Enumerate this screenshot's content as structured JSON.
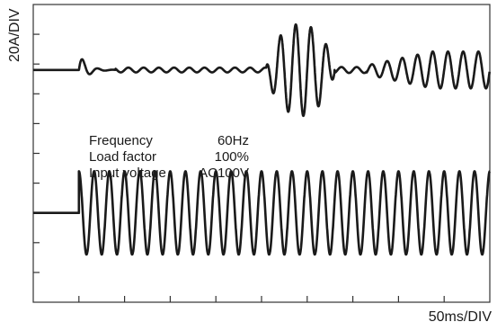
{
  "chart_data": {
    "type": "line",
    "ylabel": "20A/DIV",
    "xlabel": "50ms/DIV",
    "grid": false,
    "divisions": {
      "x": 10,
      "y": 10
    },
    "annotation": [
      {
        "key": "Frequency",
        "value": "60Hz"
      },
      {
        "key": "Load factor",
        "value": "100%"
      },
      {
        "key": "Input voltage",
        "value": "AC100V"
      }
    ],
    "series": [
      {
        "baseline_div": 2.2,
        "start_div": 1.0,
        "end_div": 10.0,
        "cycles_per_div": 3,
        "segments": [
          {
            "from_div": 1.0,
            "to_div": 1.8,
            "peak_div": 0.55,
            "decay": true
          },
          {
            "from_div": 1.8,
            "to_div": 5.1,
            "peak_div": 0.08
          },
          {
            "from_div": 5.1,
            "to_div": 6.6,
            "peak_div": 1.55,
            "burst": true
          },
          {
            "from_div": 6.6,
            "to_div": 7.3,
            "peak_div": 0.1
          },
          {
            "from_div": 7.3,
            "to_div": 10.0,
            "peak_div": 0.62,
            "ramp": true
          }
        ]
      },
      {
        "baseline_div": 7.0,
        "start_div": 1.0,
        "end_div": 10.0,
        "cycles_per_div": 3,
        "peak_div": 1.4
      }
    ],
    "colors": {
      "trace": "#1a1a1a",
      "frame": "#333333"
    }
  }
}
